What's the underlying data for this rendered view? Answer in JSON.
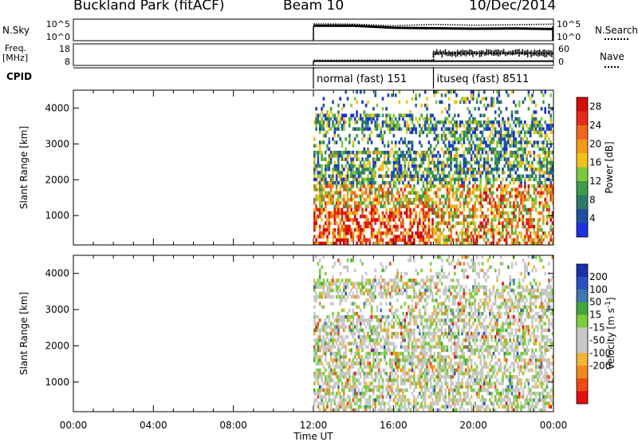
{
  "header": {
    "site": "Buckland Park (fitACF)",
    "beam": "Beam 10",
    "date": "10/Dec/2014"
  },
  "labels": {
    "nsky": "N.Sky",
    "freq": "Freq.",
    "mhz": "[MHz]",
    "cpid": "CPID",
    "nsearch": "N.Search",
    "nave": "Nave",
    "xlabel": "Time UT"
  },
  "colors": {
    "power_scale": [
      "#1f2fe0",
      "#1e4fa0",
      "#2e7a6a",
      "#3f9b4a",
      "#7dc83b",
      "#f0c21a",
      "#f39a1a",
      "#f0661a",
      "#e62a1a",
      "#d40a0a"
    ],
    "velocity_scale": [
      "#e30e0e",
      "#f04a14",
      "#f08a1e",
      "#f2b637",
      "#c8c8c8",
      "#c8c8c8",
      "#7ccd3c",
      "#3fa63c",
      "#3d78b0",
      "#2a4fbf",
      "#1a2fa8"
    ]
  },
  "chart_data": [
    {
      "type": "line",
      "panel": "noise",
      "ylabel_left": "N.Sky",
      "ylabel_right": "N.Search",
      "yticks_left": [
        "10^5",
        "10^0"
      ],
      "yticks_right": [
        "10^5",
        "10^0"
      ],
      "xlim": [
        "00:00",
        "24:00"
      ],
      "data_start": "12:00",
      "series": [
        {
          "name": "N.Sky",
          "x": [
            "12:00",
            "14:00",
            "16:00",
            "18:00",
            "20:00",
            "22:00",
            "24:00"
          ],
          "values": [
            3000,
            3000,
            1000,
            800,
            600,
            700,
            500
          ]
        },
        {
          "name": "N.Search",
          "x": [
            "12:00",
            "14:00",
            "16:00",
            "18:00",
            "20:00",
            "22:00",
            "24:00"
          ],
          "values": [
            8000,
            7000,
            3000,
            6000,
            4000,
            5000,
            7000
          ]
        }
      ]
    },
    {
      "type": "line",
      "panel": "frequency",
      "ylabel_left": "Freq. [MHz]",
      "ylabel_right": "Nave",
      "yticks_left": [
        "18",
        "8"
      ],
      "yticks_right": [
        "60",
        "0"
      ],
      "series": [
        {
          "name": "Freq.",
          "x": [
            "12:00",
            "18:00",
            "24:00"
          ],
          "values": [
            10,
            10,
            10
          ]
        },
        {
          "name": "Nave",
          "x": [
            "12:00",
            "18:00",
            "18:00",
            "24:00"
          ],
          "values": [
            14,
            14,
            34,
            34
          ]
        }
      ]
    },
    {
      "type": "table",
      "panel": "cpid",
      "columns": [
        "start",
        "name"
      ],
      "rows": [
        [
          "12:00",
          "normal (fast) 151"
        ],
        [
          "18:00",
          "ituseq (fast) 8511"
        ]
      ]
    },
    {
      "type": "heatmap",
      "panel": "power",
      "ylabel": "Slant Range [km]",
      "xlabel": "",
      "ylim": [
        180,
        4500
      ],
      "yticks": [
        1000,
        2000,
        3000,
        4000
      ],
      "colorbar_label": "Power [dB]",
      "colorbar_ticks": [
        4,
        8,
        12,
        16,
        20,
        24,
        28
      ],
      "colorbar_range": [
        0,
        30
      ],
      "data_start": "12:00",
      "xlim": [
        "00:00",
        "24:00"
      ]
    },
    {
      "type": "heatmap",
      "panel": "velocity",
      "ylabel": "Slant Range [km]",
      "xlabel": "Time UT",
      "ylim": [
        180,
        4500
      ],
      "yticks": [
        1000,
        2000,
        3000,
        4000
      ],
      "colorbar_label": "Velocity [m s^-1]",
      "colorbar_ticks": [
        200,
        100,
        50,
        15,
        -15,
        -50,
        -100,
        -200
      ],
      "data_start": "12:00",
      "xlim": [
        "00:00",
        "24:00"
      ],
      "xticks": [
        "00:00",
        "04:00",
        "08:00",
        "12:00",
        "16:00",
        "20:00",
        "00:00"
      ]
    }
  ]
}
